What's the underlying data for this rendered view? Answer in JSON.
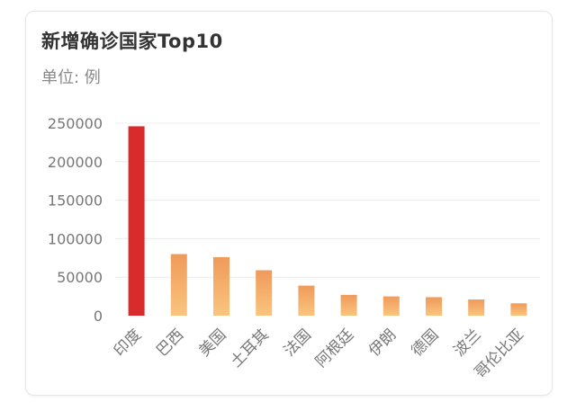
{
  "chart_title": "新增确诊国家Top10",
  "unit_label": "单位: 例",
  "colors": {
    "top_bar": "#d92b2b",
    "bar_gradient_from": "#ef9a5a",
    "bar_gradient_to": "#fac57e",
    "axis_text": "#777777",
    "grid": "#ececec"
  },
  "chart_data": {
    "type": "bar",
    "categories": [
      "印度",
      "巴西",
      "美国",
      "土耳其",
      "法国",
      "阿根廷",
      "伊朗",
      "德国",
      "波兰",
      "哥伦比亚"
    ],
    "values": [
      246000,
      80000,
      76000,
      59000,
      39000,
      27000,
      25000,
      24000,
      21000,
      16000
    ],
    "y_ticks": [
      "0",
      "50000",
      "100000",
      "150000",
      "200000",
      "250000"
    ],
    "ylim": [
      0,
      250000
    ],
    "grid": true
  }
}
